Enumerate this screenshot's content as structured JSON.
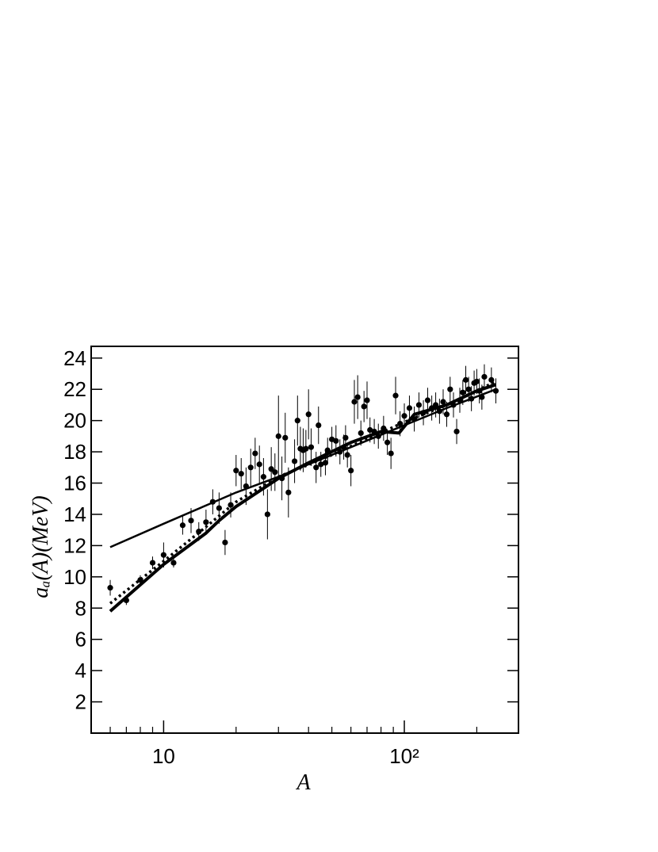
{
  "chart_data": {
    "type": "scatter",
    "xlabel": "A",
    "ylabel": "aₐ(A)(MeV)",
    "xlog": true,
    "xlim": [
      5,
      298
    ],
    "ylim": [
      0,
      24.75
    ],
    "xticks": [
      {
        "value": 10,
        "label": "10"
      },
      {
        "value": 100,
        "label": "10²"
      }
    ],
    "xminorticks": [
      6,
      7,
      8,
      9,
      20,
      30,
      40,
      50,
      60,
      70,
      80,
      90,
      200
    ],
    "yticks": [
      2,
      4,
      6,
      8,
      10,
      12,
      14,
      16,
      18,
      20,
      22,
      24
    ],
    "color": "#000000",
    "x": [
      6,
      7,
      8,
      9,
      10,
      11,
      12,
      13,
      14,
      15,
      16,
      17,
      18,
      19,
      20,
      21,
      22,
      23,
      24,
      25,
      26,
      27,
      28,
      29,
      30,
      31,
      32,
      33,
      35,
      36,
      37,
      38,
      39,
      40,
      41,
      43,
      44,
      45,
      47,
      48,
      50,
      52,
      54,
      56,
      57,
      58,
      60,
      62,
      64,
      66,
      68,
      70,
      72,
      75,
      78,
      82,
      85,
      88,
      92,
      96,
      100,
      105,
      110,
      115,
      120,
      125,
      130,
      135,
      140,
      145,
      150,
      155,
      160,
      165,
      170,
      175,
      180,
      185,
      190,
      195,
      200,
      205,
      210,
      215,
      230,
      240
    ],
    "values": [
      9.3,
      8.5,
      9.8,
      10.9,
      11.4,
      10.9,
      13.3,
      13.6,
      12.9,
      13.5,
      14.8,
      14.4,
      12.2,
      14.6,
      16.8,
      16.6,
      15.8,
      17.0,
      17.9,
      17.2,
      16.4,
      14.0,
      16.9,
      16.7,
      19.0,
      16.3,
      18.9,
      15.4,
      17.4,
      20.0,
      18.2,
      18.1,
      18.2,
      20.4,
      18.3,
      17.0,
      19.7,
      17.2,
      17.3,
      18.1,
      18.8,
      18.7,
      18.0,
      18.3,
      18.9,
      17.8,
      16.8,
      21.2,
      21.5,
      19.2,
      20.9,
      21.3,
      19.4,
      19.3,
      19.0,
      19.5,
      18.6,
      17.9,
      21.6,
      19.8,
      20.3,
      20.8,
      20.1,
      21.0,
      20.5,
      21.3,
      20.8,
      21.0,
      20.6,
      21.2,
      20.4,
      22.0,
      21.0,
      19.3,
      21.3,
      21.8,
      22.6,
      22.0,
      21.4,
      22.4,
      22.5,
      21.9,
      21.5,
      22.8,
      22.6,
      21.9
    ],
    "errors": [
      0.5,
      0.3,
      0.3,
      0.4,
      0.8,
      0.3,
      0.6,
      0.8,
      0.6,
      0.8,
      0.8,
      1.0,
      0.8,
      0.8,
      1.0,
      1.0,
      1.2,
      1.2,
      1.0,
      1.2,
      1.2,
      1.6,
      1.4,
      1.2,
      2.6,
      1.4,
      1.6,
      1.6,
      1.4,
      1.6,
      1.4,
      1.4,
      1.2,
      1.6,
      1.2,
      1.0,
      1.2,
      0.8,
      0.8,
      0.8,
      0.8,
      1.0,
      0.8,
      0.8,
      0.8,
      0.8,
      1.0,
      1.4,
      1.4,
      0.8,
      1.0,
      1.2,
      0.8,
      0.8,
      0.8,
      0.8,
      0.8,
      1.0,
      1.2,
      0.8,
      0.8,
      0.8,
      0.8,
      0.8,
      0.8,
      0.8,
      0.8,
      0.8,
      0.8,
      0.8,
      0.8,
      0.8,
      0.8,
      0.8,
      0.8,
      0.8,
      0.9,
      0.8,
      0.8,
      0.8,
      0.8,
      0.8,
      0.8,
      0.8,
      0.8,
      0.8
    ],
    "lines": [
      {
        "style": "solid",
        "width": 2.5,
        "x": [
          6,
          10,
          20,
          30,
          40,
          60,
          100,
          150,
          240
        ],
        "values": [
          11.9,
          13.4,
          15.4,
          16.4,
          17.2,
          18.3,
          19.7,
          20.8,
          22.0
        ]
      },
      {
        "style": "solid",
        "width": 4,
        "x": [
          6,
          10,
          15,
          17,
          20,
          30,
          40,
          60,
          80,
          95,
          110,
          150,
          200,
          240
        ],
        "values": [
          7.8,
          10.8,
          12.8,
          13.6,
          14.5,
          16.3,
          17.3,
          18.6,
          19.3,
          19.2,
          20.4,
          21.0,
          21.9,
          22.3
        ]
      },
      {
        "style": "dotted",
        "width": 3.5,
        "x": [
          6,
          10,
          15,
          20,
          30,
          50,
          100,
          150,
          240
        ],
        "values": [
          8.3,
          11.0,
          13.2,
          14.8,
          16.4,
          17.8,
          19.9,
          21.0,
          22.5
        ]
      }
    ]
  }
}
